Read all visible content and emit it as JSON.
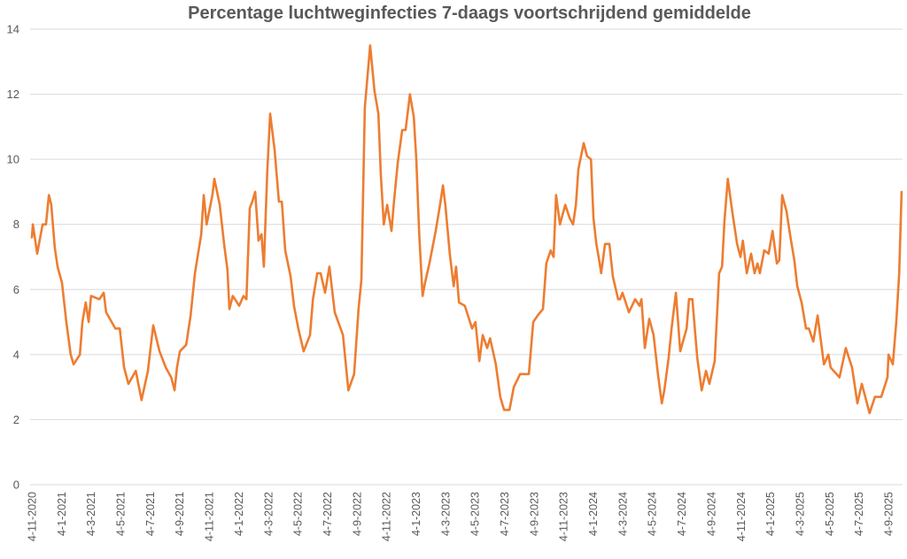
{
  "chart_data": {
    "type": "line",
    "title": "Percentage luchtweginfecties 7-daags voortschrijdend gemiddelde",
    "xlabel": "",
    "ylabel": "",
    "x_unit": "days since 4-11-2020",
    "xlim": [
      0,
      1794
    ],
    "ylim": [
      0,
      14
    ],
    "grid": true,
    "legend": "none",
    "y_ticks": [
      "0",
      "2",
      "4",
      "6",
      "8",
      "10",
      "12",
      "14"
    ],
    "y_tick_values": [
      0,
      2,
      4,
      6,
      8,
      10,
      12,
      14
    ],
    "x_ticks": [
      "4-11-2020",
      "4-1-2021",
      "4-3-2021",
      "4-5-2021",
      "4-7-2021",
      "4-9-2021",
      "4-11-2021",
      "4-1-2022",
      "4-3-2022",
      "4-5-2022",
      "4-7-2022",
      "4-9-2022",
      "4-11-2022",
      "4-1-2023",
      "4-3-2023",
      "4-5-2023",
      "4-7-2023",
      "4-9-2023",
      "4-11-2023",
      "4-1-2024",
      "4-3-2024",
      "4-5-2024",
      "4-7-2024",
      "4-9-2024",
      "4-11-2024",
      "4-1-2025",
      "4-3-2025",
      "4-5-2025",
      "4-7-2025",
      "4-9-2025"
    ],
    "series": [
      {
        "name": "Percentage luchtweginfecties",
        "color": "#ED7D31",
        "points": [
          [
            0,
            7.6
          ],
          [
            2,
            8.0
          ],
          [
            11,
            7.1
          ],
          [
            22,
            8.0
          ],
          [
            29,
            8.0
          ],
          [
            35,
            8.9
          ],
          [
            40,
            8.6
          ],
          [
            47,
            7.3
          ],
          [
            53,
            6.7
          ],
          [
            62,
            6.2
          ],
          [
            71,
            5.0
          ],
          [
            80,
            4.0
          ],
          [
            86,
            3.7
          ],
          [
            99,
            4.0
          ],
          [
            104,
            5.0
          ],
          [
            111,
            5.6
          ],
          [
            117,
            5.0
          ],
          [
            122,
            5.8
          ],
          [
            139,
            5.7
          ],
          [
            148,
            5.9
          ],
          [
            153,
            5.3
          ],
          [
            172,
            4.8
          ],
          [
            181,
            4.8
          ],
          [
            190,
            3.6
          ],
          [
            199,
            3.1
          ],
          [
            214,
            3.5
          ],
          [
            226,
            2.6
          ],
          [
            239,
            3.5
          ],
          [
            250,
            4.9
          ],
          [
            263,
            4.1
          ],
          [
            276,
            3.6
          ],
          [
            287,
            3.3
          ],
          [
            294,
            2.9
          ],
          [
            299,
            3.6
          ],
          [
            305,
            4.1
          ],
          [
            318,
            4.3
          ],
          [
            327,
            5.2
          ],
          [
            336,
            6.5
          ],
          [
            349,
            7.7
          ],
          [
            354,
            8.9
          ],
          [
            360,
            8.0
          ],
          [
            372,
            8.9
          ],
          [
            376,
            9.4
          ],
          [
            387,
            8.6
          ],
          [
            396,
            7.4
          ],
          [
            403,
            6.6
          ],
          [
            407,
            5.4
          ],
          [
            414,
            5.8
          ],
          [
            427,
            5.5
          ],
          [
            436,
            5.8
          ],
          [
            442,
            5.7
          ],
          [
            449,
            8.5
          ],
          [
            454,
            8.7
          ],
          [
            460,
            9.0
          ],
          [
            467,
            7.5
          ],
          [
            473,
            7.7
          ],
          [
            478,
            6.7
          ],
          [
            485,
            9.6
          ],
          [
            491,
            11.4
          ],
          [
            500,
            10.3
          ],
          [
            509,
            8.7
          ],
          [
            515,
            8.7
          ],
          [
            522,
            7.2
          ],
          [
            533,
            6.4
          ],
          [
            540,
            5.5
          ],
          [
            549,
            4.8
          ],
          [
            560,
            4.1
          ],
          [
            573,
            4.6
          ],
          [
            579,
            5.7
          ],
          [
            588,
            6.5
          ],
          [
            595,
            6.5
          ],
          [
            604,
            5.9
          ],
          [
            613,
            6.7
          ],
          [
            624,
            5.3
          ],
          [
            641,
            4.6
          ],
          [
            652,
            2.9
          ],
          [
            664,
            3.4
          ],
          [
            673,
            5.4
          ],
          [
            679,
            6.3
          ],
          [
            686,
            11.6
          ],
          [
            697,
            13.5
          ],
          [
            706,
            12.1
          ],
          [
            714,
            11.4
          ],
          [
            719,
            9.5
          ],
          [
            725,
            8.0
          ],
          [
            732,
            8.6
          ],
          [
            741,
            7.8
          ],
          [
            746,
            8.7
          ],
          [
            754,
            9.9
          ],
          [
            763,
            10.9
          ],
          [
            770,
            10.9
          ],
          [
            779,
            12.0
          ],
          [
            787,
            11.3
          ],
          [
            792,
            10.0
          ],
          [
            798,
            7.7
          ],
          [
            805,
            5.8
          ],
          [
            810,
            6.2
          ],
          [
            819,
            6.8
          ],
          [
            832,
            7.8
          ],
          [
            841,
            8.6
          ],
          [
            847,
            9.2
          ],
          [
            852,
            8.6
          ],
          [
            861,
            7.1
          ],
          [
            869,
            6.1
          ],
          [
            874,
            6.7
          ],
          [
            880,
            5.6
          ],
          [
            892,
            5.5
          ],
          [
            907,
            4.8
          ],
          [
            914,
            5.0
          ],
          [
            922,
            3.8
          ],
          [
            929,
            4.6
          ],
          [
            938,
            4.2
          ],
          [
            944,
            4.5
          ],
          [
            956,
            3.7
          ],
          [
            965,
            2.7
          ],
          [
            973,
            2.3
          ],
          [
            984,
            2.3
          ],
          [
            993,
            3.0
          ],
          [
            1006,
            3.4
          ],
          [
            1024,
            3.4
          ],
          [
            1033,
            5.0
          ],
          [
            1042,
            5.2
          ],
          [
            1053,
            5.4
          ],
          [
            1060,
            6.8
          ],
          [
            1069,
            7.2
          ],
          [
            1075,
            7.0
          ],
          [
            1080,
            8.9
          ],
          [
            1088,
            8.0
          ],
          [
            1099,
            8.6
          ],
          [
            1108,
            8.2
          ],
          [
            1115,
            8.0
          ],
          [
            1121,
            8.6
          ],
          [
            1126,
            9.7
          ],
          [
            1137,
            10.5
          ],
          [
            1144,
            10.1
          ],
          [
            1152,
            10.0
          ],
          [
            1157,
            8.2
          ],
          [
            1163,
            7.4
          ],
          [
            1170,
            6.8
          ],
          [
            1173,
            6.5
          ],
          [
            1181,
            7.4
          ],
          [
            1190,
            7.4
          ],
          [
            1197,
            6.4
          ],
          [
            1208,
            5.7
          ],
          [
            1212,
            5.7
          ],
          [
            1217,
            5.9
          ],
          [
            1230,
            5.3
          ],
          [
            1243,
            5.7
          ],
          [
            1252,
            5.5
          ],
          [
            1256,
            5.7
          ],
          [
            1263,
            4.2
          ],
          [
            1272,
            5.1
          ],
          [
            1281,
            4.6
          ],
          [
            1290,
            3.4
          ],
          [
            1298,
            2.5
          ],
          [
            1303,
            2.9
          ],
          [
            1312,
            3.9
          ],
          [
            1318,
            4.8
          ],
          [
            1327,
            5.9
          ],
          [
            1336,
            4.1
          ],
          [
            1349,
            4.8
          ],
          [
            1354,
            5.7
          ],
          [
            1361,
            5.7
          ],
          [
            1371,
            3.9
          ],
          [
            1380,
            2.9
          ],
          [
            1389,
            3.5
          ],
          [
            1396,
            3.1
          ],
          [
            1407,
            3.8
          ],
          [
            1416,
            6.5
          ],
          [
            1422,
            6.7
          ],
          [
            1427,
            8.1
          ],
          [
            1434,
            9.4
          ],
          [
            1444,
            8.3
          ],
          [
            1453,
            7.4
          ],
          [
            1460,
            7.0
          ],
          [
            1465,
            7.5
          ],
          [
            1473,
            6.5
          ],
          [
            1482,
            7.1
          ],
          [
            1489,
            6.5
          ],
          [
            1495,
            6.8
          ],
          [
            1500,
            6.5
          ],
          [
            1509,
            7.2
          ],
          [
            1518,
            7.1
          ],
          [
            1526,
            7.8
          ],
          [
            1535,
            6.8
          ],
          [
            1540,
            6.9
          ],
          [
            1546,
            8.9
          ],
          [
            1555,
            8.4
          ],
          [
            1562,
            7.7
          ],
          [
            1571,
            6.9
          ],
          [
            1577,
            6.1
          ],
          [
            1586,
            5.6
          ],
          [
            1595,
            4.8
          ],
          [
            1601,
            4.8
          ],
          [
            1610,
            4.4
          ],
          [
            1619,
            5.2
          ],
          [
            1632,
            3.7
          ],
          [
            1641,
            4.0
          ],
          [
            1646,
            3.6
          ],
          [
            1664,
            3.3
          ],
          [
            1677,
            4.2
          ],
          [
            1690,
            3.6
          ],
          [
            1701,
            2.5
          ],
          [
            1710,
            3.1
          ],
          [
            1719,
            2.6
          ],
          [
            1726,
            2.2
          ],
          [
            1737,
            2.7
          ],
          [
            1750,
            2.7
          ],
          [
            1763,
            3.3
          ],
          [
            1765,
            4.0
          ],
          [
            1774,
            3.7
          ],
          [
            1781,
            5.0
          ],
          [
            1787,
            6.5
          ],
          [
            1792,
            9.0
          ]
        ]
      }
    ]
  }
}
